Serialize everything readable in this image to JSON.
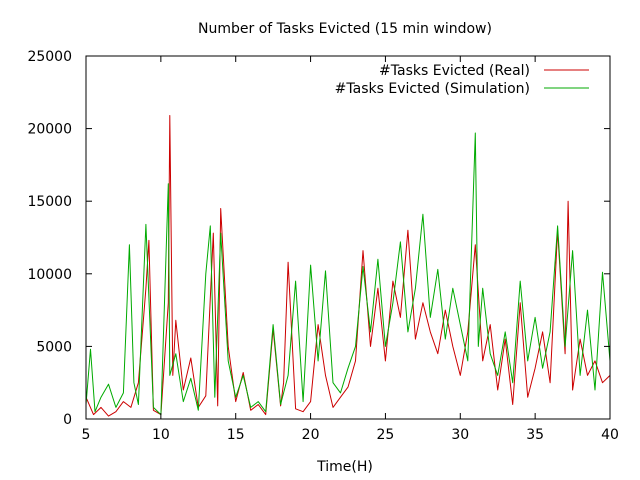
{
  "chart_data": {
    "type": "line",
    "title": "Number of Tasks Evicted (15 min window)",
    "xlabel": "Time(H)",
    "ylabel": "",
    "xlim": [
      5,
      40
    ],
    "ylim": [
      0,
      25000
    ],
    "xticks": [
      5,
      10,
      15,
      20,
      25,
      30,
      35,
      40
    ],
    "yticks": [
      0,
      5000,
      10000,
      15000,
      20000,
      25000
    ],
    "grid": false,
    "legend_position": "top-right",
    "series": [
      {
        "name": "#Tasks Evicted (Real)",
        "color": "#cc0000",
        "x": [
          5.0,
          5.5,
          6.0,
          6.5,
          7.0,
          7.5,
          8.0,
          8.5,
          9.0,
          9.2,
          9.5,
          10.0,
          10.5,
          10.6,
          10.8,
          11.0,
          11.5,
          12.0,
          12.5,
          13.0,
          13.5,
          13.8,
          14.0,
          14.5,
          15.0,
          15.5,
          16.0,
          16.5,
          17.0,
          17.5,
          18.0,
          18.2,
          18.5,
          19.0,
          19.5,
          20.0,
          20.5,
          21.0,
          21.5,
          22.0,
          22.5,
          23.0,
          23.5,
          24.0,
          24.5,
          25.0,
          25.5,
          26.0,
          26.5,
          27.0,
          27.5,
          28.0,
          28.5,
          29.0,
          29.5,
          30.0,
          30.5,
          31.0,
          31.5,
          32.0,
          32.5,
          33.0,
          33.5,
          34.0,
          34.5,
          35.0,
          35.5,
          36.0,
          36.5,
          37.0,
          37.2,
          37.5,
          38.0,
          38.5,
          39.0,
          39.5,
          40.0
        ],
        "y": [
          1500,
          300,
          800,
          200,
          500,
          1200,
          800,
          2500,
          9000,
          12300,
          600,
          300,
          8000,
          20900,
          3000,
          6800,
          2000,
          4200,
          800,
          1600,
          12800,
          900,
          14500,
          5000,
          1200,
          3200,
          600,
          1000,
          300,
          6200,
          900,
          2500,
          10800,
          700,
          500,
          1200,
          6500,
          3000,
          800,
          1500,
          2200,
          4000,
          11600,
          5000,
          9000,
          4000,
          9500,
          7000,
          13000,
          5500,
          8000,
          6000,
          4500,
          7500,
          5000,
          3000,
          6000,
          12000,
          4000,
          6500,
          2000,
          5500,
          1000,
          8000,
          1500,
          3500,
          6000,
          2500,
          13000,
          4500,
          15000,
          2000,
          5500,
          3000,
          4000,
          2500,
          3000
        ]
      },
      {
        "name": "#Tasks Evicted (Simulation)",
        "color": "#00aa00",
        "x": [
          5.0,
          5.3,
          5.6,
          6.0,
          6.5,
          7.0,
          7.5,
          7.9,
          8.2,
          8.5,
          9.0,
          9.5,
          10.0,
          10.5,
          10.6,
          11.0,
          11.5,
          12.0,
          12.5,
          13.0,
          13.3,
          13.6,
          14.0,
          14.5,
          15.0,
          15.5,
          16.0,
          16.5,
          17.0,
          17.5,
          18.0,
          18.5,
          19.0,
          19.5,
          20.0,
          20.5,
          21.0,
          21.5,
          22.0,
          22.5,
          23.0,
          23.5,
          24.0,
          24.5,
          25.0,
          25.5,
          26.0,
          26.5,
          27.0,
          27.5,
          28.0,
          28.5,
          29.0,
          29.5,
          30.0,
          30.5,
          31.0,
          31.2,
          31.5,
          32.0,
          32.5,
          33.0,
          33.5,
          34.0,
          34.5,
          35.0,
          35.5,
          36.0,
          36.5,
          37.0,
          37.5,
          38.0,
          38.5,
          39.0,
          39.5,
          40.0
        ],
        "y": [
          1000,
          4800,
          500,
          1500,
          2400,
          800,
          1800,
          12000,
          2500,
          1000,
          13400,
          800,
          300,
          16200,
          3000,
          4500,
          1200,
          2800,
          600,
          10000,
          13300,
          1500,
          12800,
          4000,
          1500,
          3000,
          800,
          1200,
          500,
          6500,
          1000,
          3000,
          9500,
          1200,
          10600,
          4000,
          10200,
          2500,
          1800,
          3500,
          5000,
          10500,
          6000,
          11000,
          5000,
          8000,
          12200,
          6000,
          9000,
          14100,
          7000,
          10300,
          5500,
          9000,
          6500,
          4000,
          19700,
          5000,
          9000,
          4500,
          3000,
          6000,
          2500,
          9500,
          4000,
          7000,
          3500,
          6000,
          13300,
          5000,
          11600,
          3000,
          7500,
          2000,
          10100,
          4000
        ]
      }
    ]
  }
}
